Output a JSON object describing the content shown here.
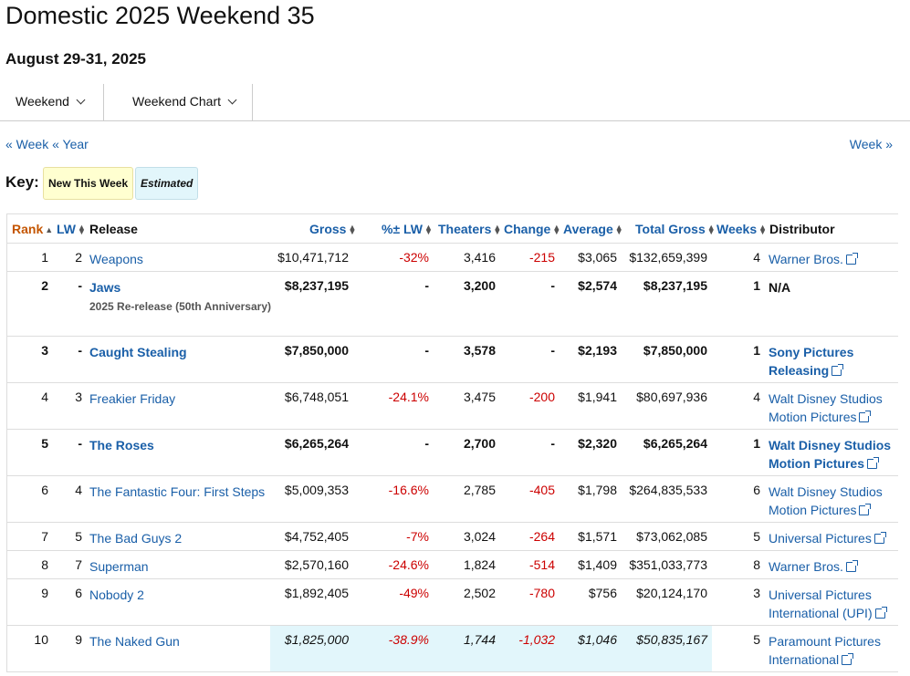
{
  "page": {
    "title": "Domestic 2025 Weekend 35",
    "subtitle": "August 29-31, 2025"
  },
  "dropdowns": [
    {
      "label": "Weekend"
    },
    {
      "label": "Weekend Chart"
    }
  ],
  "nav": {
    "prev_week": "« Week",
    "prev_year": "« Year",
    "next_week": "Week »"
  },
  "key": {
    "label": "Key:",
    "new": "New This Week",
    "estimated": "Estimated"
  },
  "columns": {
    "rank": "Rank",
    "lw": "LW",
    "release": "Release",
    "gross": "Gross",
    "pct_lw": "%± LW",
    "theaters": "Theaters",
    "change": "Change",
    "average": "Average",
    "total_gross": "Total Gross",
    "weeks": "Weeks",
    "distributor": "Distributor"
  },
  "rows": [
    {
      "rank": "1",
      "lw": "2",
      "release": "Weapons",
      "sub": "",
      "gross": "$10,471,712",
      "pct": "-32%",
      "theaters": "3,416",
      "change": "-215",
      "average": "$3,065",
      "total": "$132,659,399",
      "weeks": "4",
      "dist1": "Warner Bros.",
      "dist2": "",
      "new": false,
      "est": false
    },
    {
      "rank": "2",
      "lw": "-",
      "release": "Jaws",
      "sub": "2025 Re-release (50th Anniversary)",
      "gross": "$8,237,195",
      "pct": "-",
      "theaters": "3,200",
      "change": "-",
      "average": "$2,574",
      "total": "$8,237,195",
      "weeks": "1",
      "dist1": "N/A",
      "dist2": "",
      "new": true,
      "est": false
    },
    {
      "rank": "3",
      "lw": "-",
      "release": "Caught Stealing",
      "sub": "",
      "gross": "$7,850,000",
      "pct": "-",
      "theaters": "3,578",
      "change": "-",
      "average": "$2,193",
      "total": "$7,850,000",
      "weeks": "1",
      "dist1": "Sony Pictures",
      "dist2": "Releasing",
      "new": true,
      "est": false
    },
    {
      "rank": "4",
      "lw": "3",
      "release": "Freakier Friday",
      "sub": "",
      "gross": "$6,748,051",
      "pct": "-24.1%",
      "theaters": "3,475",
      "change": "-200",
      "average": "$1,941",
      "total": "$80,697,936",
      "weeks": "4",
      "dist1": "Walt Disney Studios",
      "dist2": "Motion Pictures",
      "new": false,
      "est": false
    },
    {
      "rank": "5",
      "lw": "-",
      "release": "The Roses",
      "sub": "",
      "gross": "$6,265,264",
      "pct": "-",
      "theaters": "2,700",
      "change": "-",
      "average": "$2,320",
      "total": "$6,265,264",
      "weeks": "1",
      "dist1": "Walt Disney Studios",
      "dist2": "Motion Pictures",
      "new": true,
      "est": false
    },
    {
      "rank": "6",
      "lw": "4",
      "release": "The Fantastic Four: First Steps",
      "sub": "",
      "gross": "$5,009,353",
      "pct": "-16.6%",
      "theaters": "2,785",
      "change": "-405",
      "average": "$1,798",
      "total": "$264,835,533",
      "weeks": "6",
      "dist1": "Walt Disney Studios",
      "dist2": "Motion Pictures",
      "new": false,
      "est": false
    },
    {
      "rank": "7",
      "lw": "5",
      "release": "The Bad Guys 2",
      "sub": "",
      "gross": "$4,752,405",
      "pct": "-7%",
      "theaters": "3,024",
      "change": "-264",
      "average": "$1,571",
      "total": "$73,062,085",
      "weeks": "5",
      "dist1": "Universal Pictures",
      "dist2": "",
      "new": false,
      "est": false
    },
    {
      "rank": "8",
      "lw": "7",
      "release": "Superman",
      "sub": "",
      "gross": "$2,570,160",
      "pct": "-24.6%",
      "theaters": "1,824",
      "change": "-514",
      "average": "$1,409",
      "total": "$351,033,773",
      "weeks": "8",
      "dist1": "Warner Bros.",
      "dist2": "",
      "new": false,
      "est": false
    },
    {
      "rank": "9",
      "lw": "6",
      "release": "Nobody 2",
      "sub": "",
      "gross": "$1,892,405",
      "pct": "-49%",
      "theaters": "2,502",
      "change": "-780",
      "average": "$756",
      "total": "$20,124,170",
      "weeks": "3",
      "dist1": "Universal Pictures",
      "dist2": "International (UPI)",
      "new": false,
      "est": false
    },
    {
      "rank": "10",
      "lw": "9",
      "release": "The Naked Gun",
      "sub": "",
      "gross": "$1,825,000",
      "pct": "-38.9%",
      "theaters": "1,744",
      "change": "-1,032",
      "average": "$1,046",
      "total": "$50,835,167",
      "weeks": "5",
      "dist1": "Paramount Pictures",
      "dist2": "International",
      "new": false,
      "est": true
    }
  ],
  "colors": {
    "link": "#1a5fa8",
    "negative": "#cc0000",
    "rank_header": "#c45500",
    "new_badge": "#ffffd0",
    "estimated_bg": "#e2f6fb"
  },
  "icons": [
    "chevron-down-icon",
    "sort-icon",
    "external-link-icon"
  ]
}
